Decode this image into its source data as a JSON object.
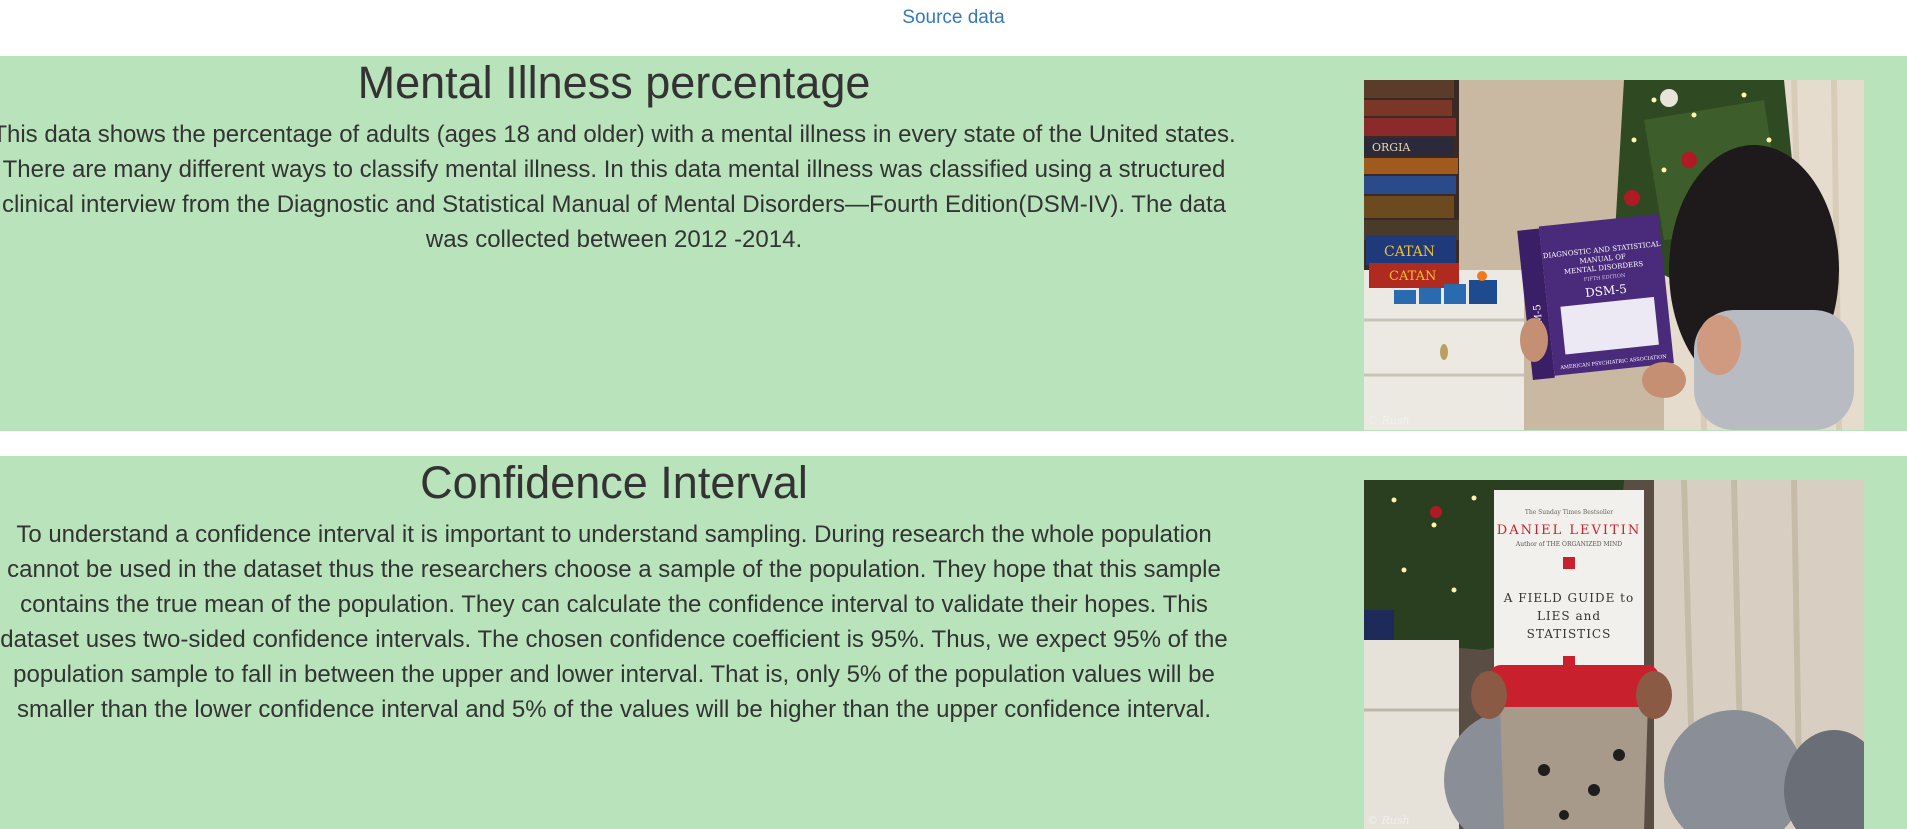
{
  "source_link": "Source data",
  "sections": [
    {
      "title": "Mental Illness percentage",
      "body": "This data shows the percentage of adults (ages 18 and older) with a mental illness in every state of the United states. There are many different ways to classify mental illness. In this data mental illness was classified using a structured clinical interview from the Diagnostic and Statistical Manual of Mental Disorders—Fourth Edition(DSM-IV). The data was collected between 2012 -2014.",
      "photo": {
        "credit": "© Rush",
        "book_lines": [
          "DIAGNOSTIC AND STATISTICAL",
          "MANUAL OF",
          "MENTAL DISORDERS"
        ],
        "book_edition": "FIFTH EDITION",
        "book_title": "DSM-5",
        "book_spine": "DSM-5",
        "book_publisher": "AMERICAN PSYCHIATRIC ASSOCIATION",
        "shelf_labels": [
          "ORGIA",
          "CATAN",
          "CATAN"
        ]
      }
    },
    {
      "title": "Confidence Interval",
      "body": "To understand a confidence interval it is important to understand sampling. During research the whole population cannot be used in the dataset thus the researchers choose a sample of the population. They hope that this sample contains the true mean of the population. They can calculate the confidence interval to validate their hopes. This dataset uses two-sided confidence intervals. The chosen confidence coefficient is 95%. Thus, we expect 95% of the population sample to fall in between the upper and lower interval. That is, only 5% of the population values will be smaller than the lower confidence interval and 5% of the values will be higher than the upper confidence interval.",
      "photo": {
        "credit": "© Rush",
        "book_tagline": "The Sunday Times Bestseller",
        "book_author": "DANIEL LEVITIN",
        "book_subline": "Author of THE ORGANIZED MIND",
        "book_title_lines": [
          "A FIELD GUIDE to",
          "LIES and",
          "STATISTICS"
        ]
      }
    }
  ],
  "colors": {
    "section_bg": "#b9e3bb",
    "link": "#337ab7",
    "text": "#333333",
    "book_purple": "#4a2a7a",
    "stocking_red": "#c8202c"
  }
}
